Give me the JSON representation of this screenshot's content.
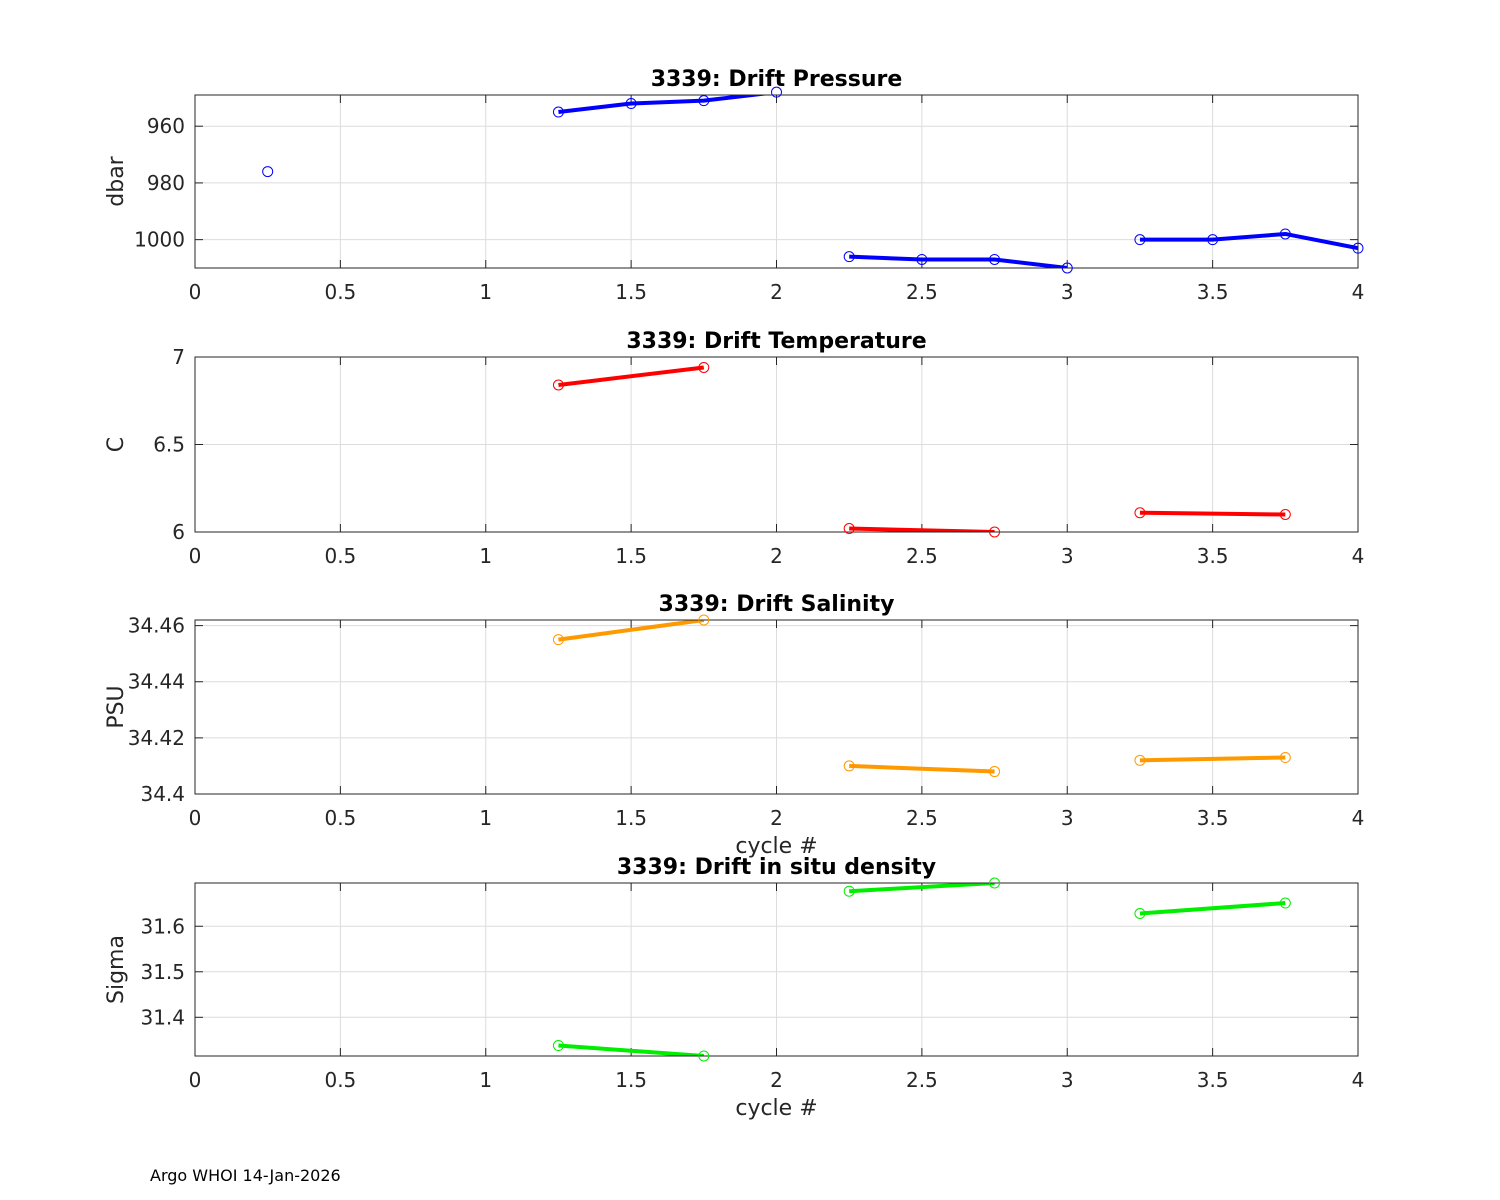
{
  "footer": "Argo WHOI 14-Jan-2026",
  "chart_data": [
    {
      "type": "line",
      "title": "3339: Drift Pressure",
      "xlabel": "",
      "ylabel": "dbar",
      "xlim": [
        0,
        4
      ],
      "ylim": [
        1010,
        949
      ],
      "y_reversed": true,
      "xticks": [
        0,
        0.5,
        1,
        1.5,
        2,
        2.5,
        3,
        3.5,
        4
      ],
      "xtick_labels": [
        "0",
        "0.5",
        "1",
        "1.5",
        "2",
        "2.5",
        "3",
        "3.5",
        "4"
      ],
      "yticks": [
        960,
        980,
        1000
      ],
      "ytick_labels": [
        "960",
        "980",
        "1000"
      ],
      "color": "#0000ff",
      "grid": true,
      "series": [
        {
          "x": [
            0.25
          ],
          "y": [
            976
          ]
        },
        {
          "x": [
            1.25,
            1.5,
            1.75,
            2.0
          ],
          "y": [
            955,
            952,
            951,
            948
          ]
        },
        {
          "x": [
            2.25,
            2.5,
            2.75,
            3.0
          ],
          "y": [
            1006,
            1007,
            1007,
            1010
          ]
        },
        {
          "x": [
            3.25,
            3.5,
            3.75,
            4.0
          ],
          "y": [
            1000,
            1000,
            998,
            1003
          ]
        }
      ]
    },
    {
      "type": "line",
      "title": "3339: Drift Temperature",
      "xlabel": "",
      "ylabel": "C",
      "xlim": [
        0,
        4
      ],
      "ylim": [
        6,
        7
      ],
      "y_reversed": false,
      "xticks": [
        0,
        0.5,
        1,
        1.5,
        2,
        2.5,
        3,
        3.5,
        4
      ],
      "xtick_labels": [
        "0",
        "0.5",
        "1",
        "1.5",
        "2",
        "2.5",
        "3",
        "3.5",
        "4"
      ],
      "yticks": [
        6,
        6.5,
        7
      ],
      "ytick_labels": [
        "6",
        "6.5",
        "7"
      ],
      "color": "#ff0000",
      "grid": true,
      "series": [
        {
          "x": [
            1.25,
            1.75
          ],
          "y": [
            6.84,
            6.94
          ]
        },
        {
          "x": [
            2.25,
            2.75
          ],
          "y": [
            6.02,
            6.0
          ]
        },
        {
          "x": [
            3.25,
            3.75
          ],
          "y": [
            6.11,
            6.1
          ]
        }
      ]
    },
    {
      "type": "line",
      "title": "3339: Drift Salinity",
      "xlabel": "cycle #",
      "ylabel": "PSU",
      "xlim": [
        0,
        4
      ],
      "ylim": [
        34.4,
        34.462
      ],
      "y_reversed": false,
      "xticks": [
        0,
        0.5,
        1,
        1.5,
        2,
        2.5,
        3,
        3.5,
        4
      ],
      "xtick_labels": [
        "0",
        "0.5",
        "1",
        "1.5",
        "2",
        "2.5",
        "3",
        "3.5",
        "4"
      ],
      "yticks": [
        34.4,
        34.42,
        34.44,
        34.46
      ],
      "ytick_labels": [
        "34.4",
        "34.42",
        "34.44",
        "34.46"
      ],
      "color": "#ff9900",
      "grid": true,
      "series": [
        {
          "x": [
            1.25,
            1.75
          ],
          "y": [
            34.455,
            34.462
          ]
        },
        {
          "x": [
            2.25,
            2.75
          ],
          "y": [
            34.41,
            34.408
          ]
        },
        {
          "x": [
            3.25,
            3.75
          ],
          "y": [
            34.412,
            34.413
          ]
        }
      ]
    },
    {
      "type": "line",
      "title": "3339: Drift in situ density",
      "xlabel": "cycle #",
      "ylabel": "Sigma",
      "xlim": [
        0,
        4
      ],
      "ylim": [
        31.315,
        31.695
      ],
      "y_reversed": false,
      "xticks": [
        0,
        0.5,
        1,
        1.5,
        2,
        2.5,
        3,
        3.5,
        4
      ],
      "xtick_labels": [
        "0",
        "0.5",
        "1",
        "1.5",
        "2",
        "2.5",
        "3",
        "3.5",
        "4"
      ],
      "yticks": [
        31.4,
        31.5,
        31.6
      ],
      "ytick_labels": [
        "31.4",
        "31.5",
        "31.6"
      ],
      "color": "#00ee00",
      "grid": true,
      "series": [
        {
          "x": [
            1.25,
            1.75
          ],
          "y": [
            31.338,
            31.315
          ]
        },
        {
          "x": [
            2.25,
            2.75
          ],
          "y": [
            31.677,
            31.695
          ]
        },
        {
          "x": [
            3.25,
            3.75
          ],
          "y": [
            31.628,
            31.651
          ]
        }
      ]
    }
  ]
}
